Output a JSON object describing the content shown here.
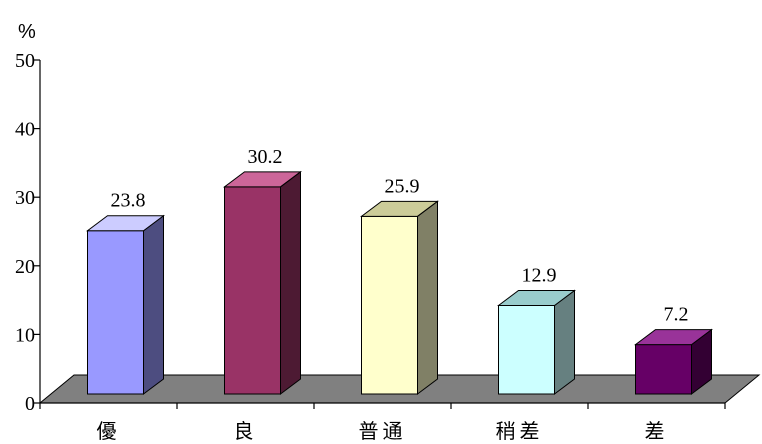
{
  "chart_data": {
    "type": "bar",
    "title": "",
    "xlabel": "",
    "ylabel": "%",
    "ylim": [
      0,
      50
    ],
    "yticks": [
      0,
      10,
      20,
      30,
      40,
      50
    ],
    "grid": false,
    "style": "3d",
    "categories": [
      "優",
      "良",
      "普通",
      "稍差",
      "差"
    ],
    "values": [
      23.8,
      30.2,
      25.9,
      12.9,
      7.2
    ],
    "value_labels": [
      "23.8",
      "30.2",
      "25.9",
      "12.9",
      "7.2"
    ],
    "bar_colors": [
      {
        "front": "#9999ff",
        "side": "#4d4d80",
        "top": "#ccccff"
      },
      {
        "front": "#993366",
        "side": "#4d1a33",
        "top": "#cc6699"
      },
      {
        "front": "#ffffcc",
        "side": "#808066",
        "top": "#cccc99"
      },
      {
        "front": "#ccffff",
        "side": "#668080",
        "top": "#99cccc"
      },
      {
        "front": "#660066",
        "side": "#330033",
        "top": "#993399"
      }
    ],
    "floor_color": "#808080"
  }
}
